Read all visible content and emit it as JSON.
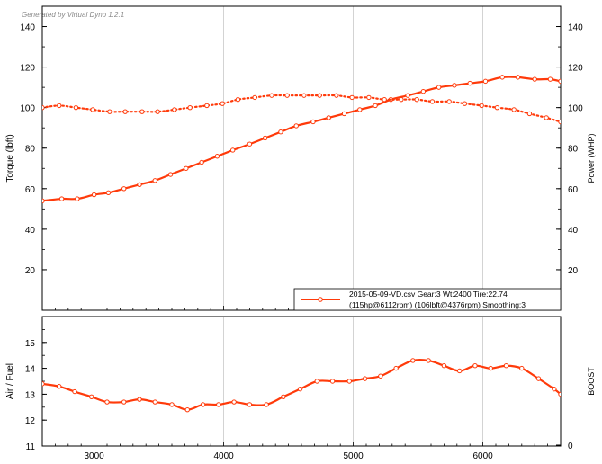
{
  "watermark": "Generated by Virtual Dyno 1.2.1",
  "colors": {
    "series": "#ff3a0a",
    "grid": "#c8c8c8",
    "axis": "#000000",
    "text": "#000000",
    "watermark": "#8a8a8a"
  },
  "chart_data": [
    {
      "type": "line",
      "panel": "top",
      "ylabel_left": "Torque (lbft)",
      "ylabel_right": "Power (WHP)",
      "xlim": [
        2600,
        6600
      ],
      "ylim": [
        0,
        150
      ],
      "y_ticks": [
        20,
        40,
        60,
        80,
        100,
        120,
        140
      ],
      "grid": "vertical",
      "legend_position": "bottom-right",
      "legend": {
        "line1": "2015-05-09-VD.csv Gear:3 Wt:2400 Tire:22.74",
        "line2": "(115hp@6112rpm) (106lbft@4376rpm) Smoothing:3"
      },
      "series": [
        {
          "style": "solid",
          "axis": "right",
          "x": [
            2600,
            2750,
            2870,
            3000,
            3110,
            3230,
            3350,
            3470,
            3590,
            3710,
            3830,
            3950,
            4070,
            4200,
            4320,
            4440,
            4560,
            4690,
            4810,
            4930,
            5050,
            5170,
            5290,
            5420,
            5540,
            5660,
            5780,
            5900,
            6020,
            6150,
            6270,
            6400,
            6520,
            6600
          ],
          "values": [
            54,
            55,
            55,
            57,
            58,
            60,
            62,
            64,
            67,
            70,
            73,
            76,
            79,
            82,
            85,
            88,
            91,
            93,
            95,
            97,
            99,
            101,
            104,
            106,
            108,
            110,
            111,
            112,
            113,
            115,
            115,
            114,
            114,
            113
          ]
        },
        {
          "style": "dotted",
          "axis": "left",
          "x": [
            2600,
            2730,
            2860,
            2990,
            3120,
            3240,
            3370,
            3490,
            3620,
            3740,
            3870,
            3990,
            4110,
            4240,
            4370,
            4490,
            4620,
            4740,
            4870,
            4990,
            5120,
            5240,
            5370,
            5490,
            5610,
            5740,
            5860,
            5990,
            6110,
            6240,
            6360,
            6490,
            6600
          ],
          "values": [
            100,
            101,
            100,
            99,
            98,
            98,
            98,
            98,
            99,
            100,
            101,
            102,
            104,
            105,
            106,
            106,
            106,
            106,
            106,
            105,
            105,
            104,
            104,
            104,
            103,
            103,
            102,
            101,
            100,
            99,
            97,
            95,
            93
          ]
        }
      ]
    },
    {
      "type": "line",
      "panel": "bottom",
      "ylabel_left": "Air / Fuel",
      "ylabel_right": "BOOST",
      "xlim": [
        2600,
        6600
      ],
      "ylim": [
        11,
        16
      ],
      "y_ticks": [
        11,
        12,
        13,
        14,
        15
      ],
      "right_ticks": [
        0
      ],
      "x_ticks": [
        3000,
        4000,
        5000,
        6000
      ],
      "grid": "vertical",
      "series": [
        {
          "style": "solid",
          "axis": "left",
          "x": [
            2600,
            2730,
            2850,
            2980,
            3100,
            3230,
            3350,
            3470,
            3600,
            3720,
            3840,
            3960,
            4080,
            4200,
            4330,
            4460,
            4590,
            4720,
            4840,
            4970,
            5090,
            5210,
            5330,
            5460,
            5580,
            5700,
            5820,
            5940,
            6060,
            6180,
            6300,
            6430,
            6550,
            6600
          ],
          "values": [
            13.4,
            13.3,
            13.1,
            12.9,
            12.7,
            12.7,
            12.8,
            12.7,
            12.6,
            12.4,
            12.6,
            12.6,
            12.7,
            12.6,
            12.6,
            12.9,
            13.2,
            13.5,
            13.5,
            13.5,
            13.6,
            13.7,
            14.0,
            14.3,
            14.3,
            14.1,
            13.9,
            14.1,
            14.0,
            14.1,
            14.0,
            13.6,
            13.2,
            13.0
          ]
        }
      ]
    }
  ]
}
